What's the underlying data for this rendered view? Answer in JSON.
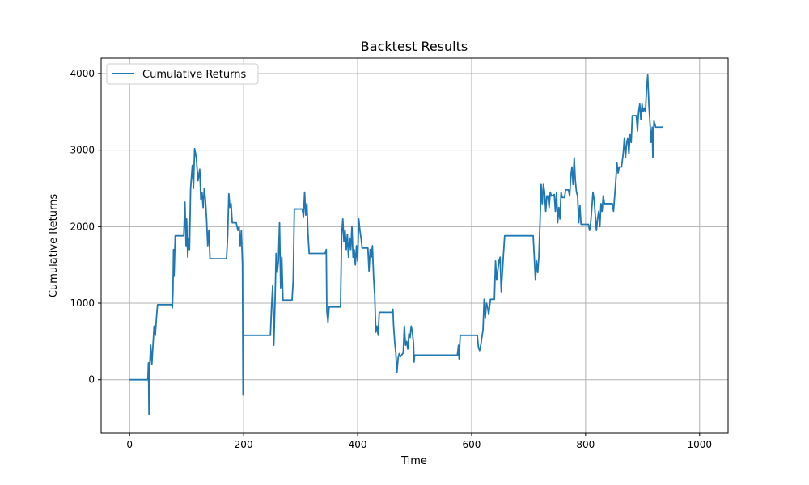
{
  "chart_data": {
    "type": "line",
    "title": "Backtest Results",
    "xlabel": "Time",
    "ylabel": "Cumulative Returns",
    "xlim": [
      -50,
      1050
    ],
    "ylim": [
      -700,
      4200
    ],
    "x_ticks": [
      0,
      200,
      400,
      600,
      800,
      1000
    ],
    "y_ticks": [
      0,
      1000,
      2000,
      3000,
      4000
    ],
    "grid": true,
    "legend": "top-left",
    "series": [
      {
        "name": "Cumulative Returns",
        "color": "#1f77b4",
        "points": [
          [
            0,
            0
          ],
          [
            32,
            0
          ],
          [
            33,
            220
          ],
          [
            34,
            -450
          ],
          [
            35,
            150
          ],
          [
            37,
            450
          ],
          [
            39,
            200
          ],
          [
            41,
            450
          ],
          [
            43,
            700
          ],
          [
            45,
            580
          ],
          [
            47,
            800
          ],
          [
            49,
            980
          ],
          [
            52,
            980
          ],
          [
            74,
            980
          ],
          [
            75,
            940
          ],
          [
            76,
            1150
          ],
          [
            77,
            1700
          ],
          [
            78,
            1350
          ],
          [
            80,
            1880
          ],
          [
            95,
            1880
          ],
          [
            97,
            2320
          ],
          [
            99,
            1750
          ],
          [
            100,
            2100
          ],
          [
            102,
            1600
          ],
          [
            103,
            1850
          ],
          [
            105,
            1700
          ],
          [
            107,
            2500
          ],
          [
            110,
            2800
          ],
          [
            112,
            2500
          ],
          [
            114,
            3020
          ],
          [
            117,
            2900
          ],
          [
            120,
            2600
          ],
          [
            123,
            2750
          ],
          [
            125,
            2350
          ],
          [
            127,
            2450
          ],
          [
            129,
            2250
          ],
          [
            131,
            2500
          ],
          [
            133,
            2350
          ],
          [
            135,
            2100
          ],
          [
            137,
            1750
          ],
          [
            139,
            1950
          ],
          [
            141,
            1580
          ],
          [
            170,
            1580
          ],
          [
            172,
            1880
          ],
          [
            174,
            2430
          ],
          [
            176,
            2250
          ],
          [
            178,
            2300
          ],
          [
            180,
            2050
          ],
          [
            183,
            2050
          ],
          [
            187,
            2050
          ],
          [
            190,
            1950
          ],
          [
            192,
            2000
          ],
          [
            194,
            1750
          ],
          [
            196,
            1950
          ],
          [
            198,
            1500
          ],
          [
            199,
            -200
          ],
          [
            200,
            580
          ],
          [
            230,
            580
          ],
          [
            247,
            580
          ],
          [
            249,
            950
          ],
          [
            251,
            1230
          ],
          [
            253,
            450
          ],
          [
            255,
            1000
          ],
          [
            257,
            1650
          ],
          [
            259,
            1400
          ],
          [
            261,
            1550
          ],
          [
            263,
            2050
          ],
          [
            265,
            1200
          ],
          [
            267,
            1600
          ],
          [
            269,
            1040
          ],
          [
            285,
            1040
          ],
          [
            287,
            1300
          ],
          [
            289,
            2230
          ],
          [
            303,
            2230
          ],
          [
            305,
            2120
          ],
          [
            307,
            2450
          ],
          [
            309,
            2150
          ],
          [
            311,
            2300
          ],
          [
            313,
            1900
          ],
          [
            315,
            1650
          ],
          [
            343,
            1650
          ],
          [
            345,
            1700
          ],
          [
            346,
            900
          ],
          [
            348,
            750
          ],
          [
            350,
            950
          ],
          [
            370,
            950
          ],
          [
            372,
            1900
          ],
          [
            374,
            2100
          ],
          [
            376,
            1800
          ],
          [
            378,
            1950
          ],
          [
            380,
            1700
          ],
          [
            382,
            1900
          ],
          [
            384,
            1600
          ],
          [
            386,
            1850
          ],
          [
            388,
            1700
          ],
          [
            390,
            2000
          ],
          [
            392,
            1600
          ],
          [
            394,
            1700
          ],
          [
            396,
            1500
          ],
          [
            398,
            1750
          ],
          [
            400,
            1550
          ],
          [
            402,
            2100
          ],
          [
            404,
            1950
          ],
          [
            406,
            1850
          ],
          [
            408,
            1720
          ],
          [
            418,
            1720
          ],
          [
            420,
            1420
          ],
          [
            422,
            1700
          ],
          [
            424,
            1600
          ],
          [
            426,
            1750
          ],
          [
            428,
            1350
          ],
          [
            430,
            1100
          ],
          [
            432,
            620
          ],
          [
            434,
            700
          ],
          [
            436,
            580
          ],
          [
            438,
            880
          ],
          [
            460,
            880
          ],
          [
            462,
            920
          ],
          [
            463,
            720
          ],
          [
            465,
            500
          ],
          [
            467,
            350
          ],
          [
            469,
            100
          ],
          [
            471,
            280
          ],
          [
            473,
            340
          ],
          [
            475,
            300
          ],
          [
            480,
            350
          ],
          [
            482,
            700
          ],
          [
            484,
            450
          ],
          [
            486,
            500
          ],
          [
            488,
            400
          ],
          [
            490,
            600
          ],
          [
            492,
            550
          ],
          [
            494,
            700
          ],
          [
            496,
            620
          ],
          [
            498,
            480
          ],
          [
            499,
            230
          ],
          [
            500,
            320
          ],
          [
            575,
            320
          ],
          [
            577,
            450
          ],
          [
            578,
            270
          ],
          [
            580,
            580
          ],
          [
            610,
            580
          ],
          [
            612,
            420
          ],
          [
            614,
            380
          ],
          [
            616,
            450
          ],
          [
            620,
            650
          ],
          [
            622,
            1050
          ],
          [
            624,
            800
          ],
          [
            626,
            1000
          ],
          [
            628,
            950
          ],
          [
            630,
            850
          ],
          [
            633,
            1050
          ],
          [
            637,
            1050
          ],
          [
            640,
            1050
          ],
          [
            642,
            1550
          ],
          [
            644,
            1300
          ],
          [
            648,
            1550
          ],
          [
            650,
            1600
          ],
          [
            652,
            1150
          ],
          [
            656,
            1650
          ],
          [
            658,
            1880
          ],
          [
            708,
            1880
          ],
          [
            710,
            1600
          ],
          [
            712,
            1300
          ],
          [
            714,
            1550
          ],
          [
            716,
            1400
          ],
          [
            718,
            1600
          ],
          [
            720,
            2050
          ],
          [
            722,
            2550
          ],
          [
            724,
            2300
          ],
          [
            726,
            2550
          ],
          [
            728,
            2450
          ],
          [
            730,
            2200
          ],
          [
            732,
            2400
          ],
          [
            734,
            2400
          ],
          [
            736,
            2250
          ],
          [
            738,
            2450
          ],
          [
            740,
            2400
          ],
          [
            745,
            2420
          ],
          [
            747,
            2200
          ],
          [
            749,
            2450
          ],
          [
            751,
            2050
          ],
          [
            753,
            2250
          ],
          [
            755,
            2100
          ],
          [
            757,
            2450
          ],
          [
            759,
            2380
          ],
          [
            763,
            2380
          ],
          [
            765,
            2480
          ],
          [
            770,
            2480
          ],
          [
            772,
            2400
          ],
          [
            774,
            2650
          ],
          [
            776,
            2780
          ],
          [
            778,
            2550
          ],
          [
            780,
            2900
          ],
          [
            782,
            2600
          ],
          [
            784,
            2450
          ],
          [
            786,
            2400
          ],
          [
            788,
            2050
          ],
          [
            790,
            2280
          ],
          [
            792,
            2030
          ],
          [
            800,
            2030
          ],
          [
            805,
            2030
          ],
          [
            807,
            1950
          ],
          [
            809,
            2050
          ],
          [
            811,
            2250
          ],
          [
            813,
            2450
          ],
          [
            815,
            2350
          ],
          [
            817,
            2150
          ],
          [
            819,
            1950
          ],
          [
            821,
            2100
          ],
          [
            823,
            2200
          ],
          [
            825,
            2000
          ],
          [
            827,
            2300
          ],
          [
            829,
            2200
          ],
          [
            831,
            2400
          ],
          [
            833,
            2300
          ],
          [
            847,
            2300
          ],
          [
            849,
            2200
          ],
          [
            851,
            2400
          ],
          [
            853,
            2600
          ],
          [
            855,
            2830
          ],
          [
            857,
            2700
          ],
          [
            859,
            2780
          ],
          [
            863,
            2780
          ],
          [
            866,
            2950
          ],
          [
            868,
            3150
          ],
          [
            870,
            2900
          ],
          [
            872,
            3100
          ],
          [
            874,
            3150
          ],
          [
            876,
            2950
          ],
          [
            878,
            3200
          ],
          [
            880,
            3100
          ],
          [
            882,
            3450
          ],
          [
            889,
            3450
          ],
          [
            891,
            3250
          ],
          [
            893,
            3500
          ],
          [
            895,
            3600
          ],
          [
            897,
            3400
          ],
          [
            899,
            3600
          ],
          [
            901,
            3500
          ],
          [
            903,
            3550
          ],
          [
            905,
            3500
          ],
          [
            907,
            3800
          ],
          [
            909,
            3980
          ],
          [
            911,
            3600
          ],
          [
            913,
            3350
          ],
          [
            915,
            3100
          ],
          [
            917,
            3300
          ],
          [
            918,
            2900
          ],
          [
            920,
            3380
          ],
          [
            923,
            3300
          ],
          [
            935,
            3300
          ]
        ]
      }
    ]
  }
}
